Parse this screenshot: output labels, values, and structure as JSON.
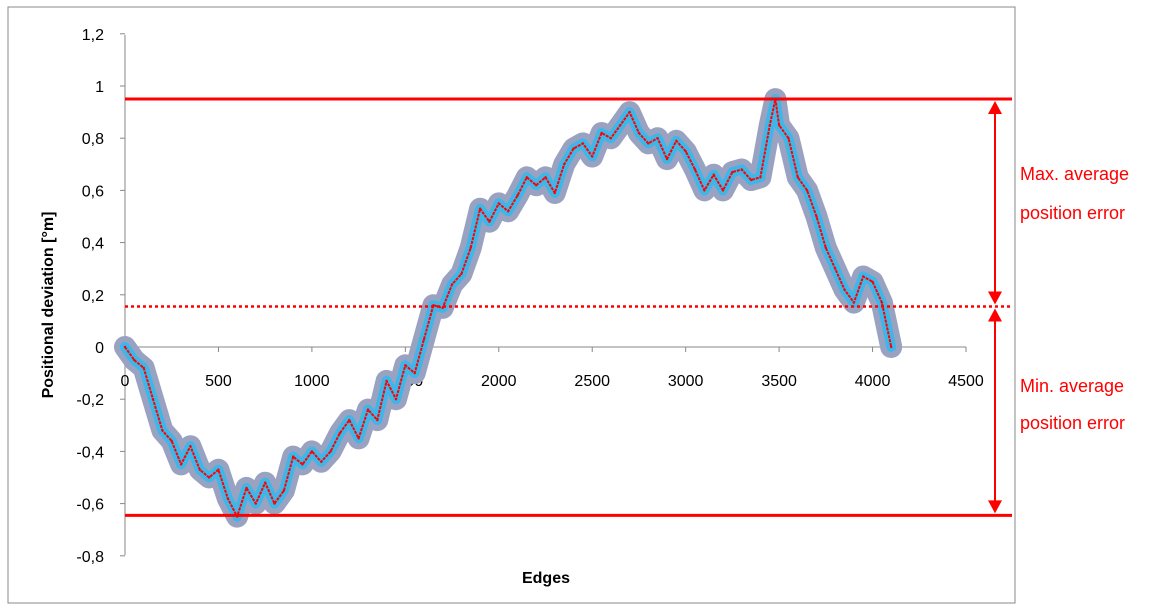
{
  "chart_data": {
    "type": "line",
    "title": "",
    "xlabel": "Edges",
    "ylabel": "Positional deviation [°m]",
    "xlim": [
      0,
      4500
    ],
    "ylim": [
      -0.8,
      1.2
    ],
    "x_ticks": [
      "0",
      "500",
      "1000",
      "1500",
      "2000",
      "2500",
      "3000",
      "3500",
      "4000",
      "4500"
    ],
    "y_ticks": [
      "1,2",
      "1",
      "0,8",
      "0,6",
      "0,4",
      "0,2",
      "0",
      "-0,2",
      "-0,4",
      "-0,6",
      "-0,8"
    ],
    "grid": false,
    "series": [
      {
        "x": [
          0,
          50,
          100,
          150,
          200,
          250,
          300,
          350,
          400,
          450,
          500,
          550,
          600,
          650,
          700,
          750,
          800,
          850,
          900,
          950,
          1000,
          1050,
          1100,
          1150,
          1200,
          1250,
          1300,
          1350,
          1400,
          1450,
          1500,
          1550,
          1600,
          1650,
          1700,
          1750,
          1800,
          1850,
          1900,
          1950,
          2000,
          2050,
          2100,
          2150,
          2200,
          2250,
          2300,
          2350,
          2400,
          2450,
          2500,
          2550,
          2600,
          2650,
          2700,
          2750,
          2800,
          2850,
          2900,
          2950,
          3000,
          3050,
          3100,
          3150,
          3200,
          3250,
          3300,
          3350,
          3400,
          3450,
          3480,
          3500,
          3550,
          3600,
          3650,
          3700,
          3750,
          3800,
          3850,
          3900,
          3950,
          4000,
          4050,
          4100
        ],
        "values": [
          0.0,
          -0.05,
          -0.08,
          -0.2,
          -0.32,
          -0.36,
          -0.45,
          -0.38,
          -0.47,
          -0.5,
          -0.47,
          -0.58,
          -0.65,
          -0.54,
          -0.6,
          -0.52,
          -0.6,
          -0.55,
          -0.42,
          -0.45,
          -0.4,
          -0.44,
          -0.4,
          -0.33,
          -0.28,
          -0.35,
          -0.24,
          -0.28,
          -0.13,
          -0.2,
          -0.07,
          -0.1,
          0.03,
          0.16,
          0.15,
          0.24,
          0.28,
          0.38,
          0.53,
          0.48,
          0.55,
          0.52,
          0.58,
          0.65,
          0.62,
          0.65,
          0.59,
          0.7,
          0.76,
          0.78,
          0.73,
          0.82,
          0.8,
          0.85,
          0.9,
          0.82,
          0.78,
          0.8,
          0.72,
          0.79,
          0.75,
          0.68,
          0.6,
          0.66,
          0.6,
          0.67,
          0.68,
          0.64,
          0.65,
          0.85,
          0.95,
          0.85,
          0.8,
          0.65,
          0.6,
          0.5,
          0.38,
          0.3,
          0.22,
          0.17,
          0.27,
          0.25,
          0.17,
          0.0
        ]
      }
    ],
    "reference_lines": [
      {
        "y": 0.95,
        "style": "solid",
        "color": "#ff0000"
      },
      {
        "y": 0.155,
        "style": "dotted",
        "color": "#ff0000"
      },
      {
        "y": -0.645,
        "style": "solid",
        "color": "#ff0000"
      }
    ],
    "annotations": [
      {
        "lines": [
          "Max. average",
          "position error"
        ],
        "from_y": 0.95,
        "to_y": 0.155
      },
      {
        "lines": [
          "Min. average",
          "position error"
        ],
        "from_y": 0.155,
        "to_y": -0.645
      }
    ],
    "colors": {
      "band_outer": "#9aa2c2",
      "band_inner": "#3fb6e8",
      "line": "#ff0000",
      "reference": "#ff0000",
      "annotation_text": "#ff0000",
      "axis": "#878787",
      "frame": "#888888"
    }
  }
}
